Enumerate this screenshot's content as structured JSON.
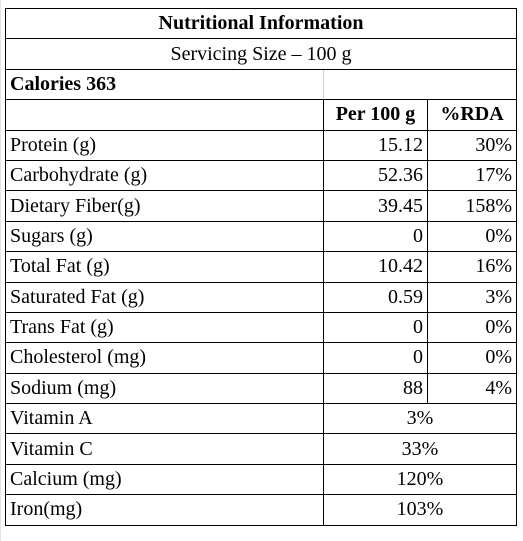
{
  "title": "Nutritional Information",
  "serving": "Servicing Size – 100 g",
  "calories": "Calories 363",
  "columns": {
    "per100": "Per 100 g",
    "rda": "%RDA"
  },
  "rows": [
    {
      "label": "Protein (g)",
      "per100": "15.12",
      "rda": "30%"
    },
    {
      "label": "Carbohydrate (g)",
      "per100": "52.36",
      "rda": "17%"
    },
    {
      "label": "Dietary Fiber(g)",
      "per100": "39.45",
      "rda": "158%"
    },
    {
      "label": "Sugars (g)",
      "per100": "0",
      "rda": "0%"
    },
    {
      "label": "Total Fat (g)",
      "per100": "10.42",
      "rda": "16%"
    },
    {
      "label": "Saturated Fat (g)",
      "per100": "0.59",
      "rda": "3%"
    },
    {
      "label": "Trans Fat (g)",
      "per100": "0",
      "rda": "0%"
    },
    {
      "label": "Cholesterol (mg)",
      "per100": "0",
      "rda": "0%"
    },
    {
      "label": "Sodium (mg)",
      "per100": "88",
      "rda": "4%"
    }
  ],
  "vitamins": [
    {
      "label": "Vitamin A",
      "value": "3%"
    },
    {
      "label": "Vitamin C",
      "value": "33%"
    },
    {
      "label": "Calcium (mg)",
      "value": "120%"
    },
    {
      "label": "Iron(mg)",
      "value": "103%"
    }
  ]
}
